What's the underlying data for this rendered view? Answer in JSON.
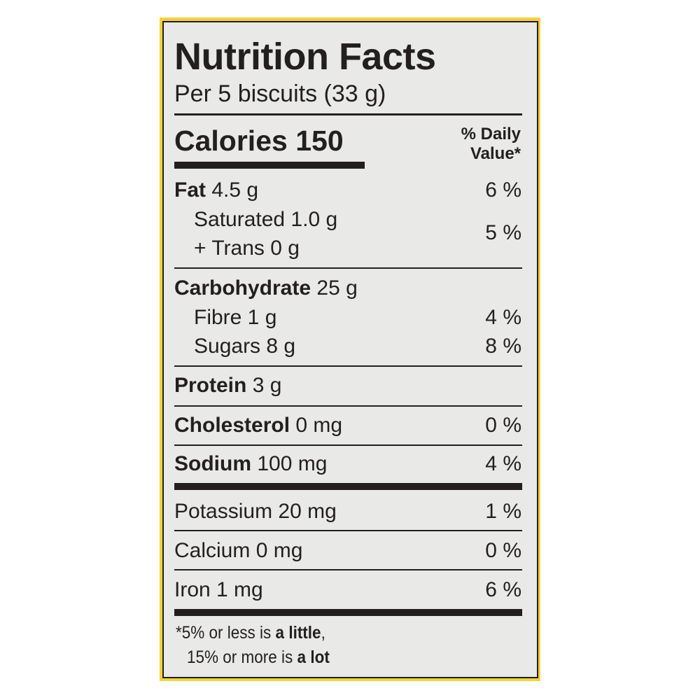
{
  "title": "Nutrition Facts",
  "serving": "Per 5 biscuits (33 g)",
  "calories": {
    "label": "Calories",
    "value": "150"
  },
  "dv_header": {
    "line1": "% Daily",
    "line2": "Value*"
  },
  "nutrients": {
    "fat": {
      "label": "Fat",
      "amount": "4.5 g",
      "dv": "6 %"
    },
    "saturated": {
      "label": "Saturated 1.0 g"
    },
    "trans": {
      "label": "+ Trans 0 g"
    },
    "sat_trans_dv": "5 %",
    "carbohydrate": {
      "label": "Carbohydrate",
      "amount": "25 g"
    },
    "fibre": {
      "label": "Fibre 1 g",
      "dv": "4 %"
    },
    "sugars": {
      "label": "Sugars 8 g",
      "dv": "8 %"
    },
    "protein": {
      "label": "Protein",
      "amount": "3 g"
    },
    "cholesterol": {
      "label": "Cholesterol",
      "amount": "0 mg",
      "dv": "0 %"
    },
    "sodium": {
      "label": "Sodium",
      "amount": "100 mg",
      "dv": "4 %"
    },
    "potassium": {
      "label": "Potassium 20 mg",
      "dv": "1 %"
    },
    "calcium": {
      "label": "Calcium 0 mg",
      "dv": "0 %"
    },
    "iron": {
      "label": "Iron 1 mg",
      "dv": "6 %"
    }
  },
  "footnote": {
    "line1_prefix": "*5% or less is ",
    "line1_bold": "a little",
    "line1_suffix": ",",
    "line2_prefix": "15% or more is ",
    "line2_bold": "a lot"
  },
  "colors": {
    "border": "#f2d23a",
    "ink": "#231f20",
    "background": "#e9e9e7"
  }
}
